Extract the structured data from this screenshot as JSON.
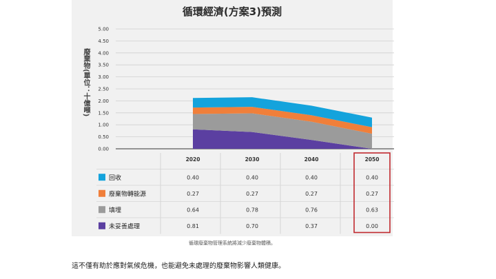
{
  "chart_data": {
    "type": "area",
    "title": "循環經濟(方案3)預測",
    "ylabel": "廢棄物(單位：十億噸)",
    "xlabel": "",
    "x": [
      "2020",
      "2030",
      "2040",
      "2050"
    ],
    "yticks": [
      "5.00",
      "4.50",
      "4.00",
      "3.50",
      "3.00",
      "2.50",
      "2.00",
      "1.50",
      "1.00",
      "0.50",
      "0.00"
    ],
    "ylim": [
      0,
      5
    ],
    "stacked": true,
    "grid": true,
    "series": [
      {
        "name": "未妥善處理",
        "color": "#5b3fa1",
        "values": [
          0.81,
          0.7,
          0.37,
          0.0
        ]
      },
      {
        "name": "填埋",
        "color": "#9b9b9b",
        "values": [
          0.64,
          0.78,
          0.76,
          0.63
        ]
      },
      {
        "name": "廢棄物轉能源",
        "color": "#f07f3a",
        "values": [
          0.27,
          0.27,
          0.27,
          0.27
        ]
      },
      {
        "name": "回收",
        "color": "#14a3dc",
        "values": [
          0.4,
          0.4,
          0.4,
          0.4
        ]
      }
    ],
    "table": {
      "header": [
        "2020",
        "2030",
        "2040",
        "2050"
      ],
      "rows": [
        {
          "label": "回收",
          "color": "#14a3dc",
          "values": [
            "0.40",
            "0.40",
            "0.40",
            "0.40"
          ]
        },
        {
          "label": "廢棄物轉能源",
          "color": "#f07f3a",
          "values": [
            "0.27",
            "0.27",
            "0.27",
            "0.27"
          ]
        },
        {
          "label": "填埋",
          "color": "#9b9b9b",
          "values": [
            "0.64",
            "0.78",
            "0.76",
            "0.63"
          ]
        },
        {
          "label": "未妥善處理",
          "color": "#5b3fa1",
          "values": [
            "0.81",
            "0.70",
            "0.37",
            "0.00"
          ]
        }
      ],
      "highlight_column": "2050",
      "highlight_color": "#c0282d"
    }
  },
  "caption": "循環廢棄物管理系統將減少廢棄物體積。",
  "body_text": "這不僅有助於應對氣候危機，也能避免未處理的廢棄物影響人類健康。"
}
